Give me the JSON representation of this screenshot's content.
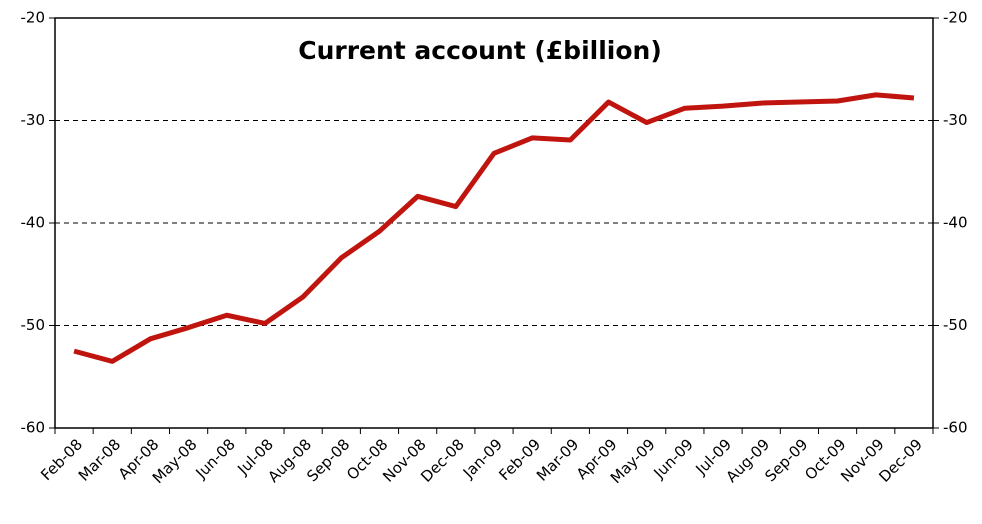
{
  "chart_data": {
    "type": "line",
    "title": "Current account (£billion)",
    "categories": [
      "Feb-08",
      "Mar-08",
      "Apr-08",
      "May-08",
      "Jun-08",
      "Jul-08",
      "Aug-08",
      "Sep-08",
      "Oct-08",
      "Nov-08",
      "Dec-08",
      "Jan-09",
      "Feb-09",
      "Mar-09",
      "Apr-09",
      "May-09",
      "Jun-09",
      "Jul-09",
      "Aug-09",
      "Sep-09",
      "Oct-09",
      "Nov-09",
      "Dec-09"
    ],
    "values": [
      -52.5,
      -53.5,
      -51.3,
      -50.2,
      -49.0,
      -49.8,
      -47.2,
      -43.4,
      -40.8,
      -37.4,
      -38.4,
      -33.2,
      -31.7,
      -31.9,
      -28.2,
      -30.2,
      -28.8,
      -28.6,
      -28.3,
      -28.2,
      -28.1,
      -27.5,
      -27.8
    ],
    "color": "#c0150f",
    "ylim": [
      -60,
      -20
    ],
    "yticks": [
      -60,
      -50,
      -40,
      -30,
      -20
    ],
    "grid": true
  }
}
